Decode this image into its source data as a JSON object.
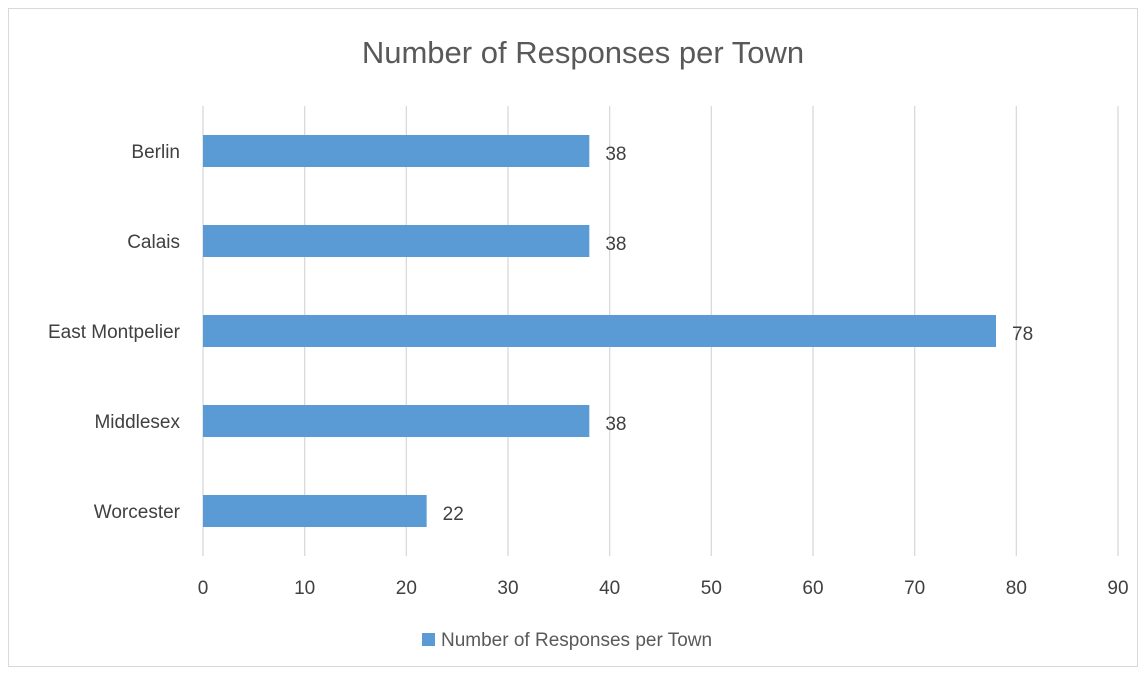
{
  "chart_data": {
    "type": "bar",
    "orientation": "horizontal",
    "title": "Number of Responses per Town",
    "categories": [
      "Berlin",
      "Calais",
      "East Montpelier",
      "Middlesex",
      "Worcester"
    ],
    "series": [
      {
        "name": "Number of Responses per Town",
        "values": [
          38,
          38,
          78,
          38,
          22
        ],
        "color": "#5b9bd5"
      }
    ],
    "xlim": [
      0,
      90
    ],
    "xticks": [
      0,
      10,
      20,
      30,
      40,
      50,
      60,
      70,
      80,
      90
    ],
    "grid": true,
    "data_labels": true,
    "legend": "bottom"
  }
}
